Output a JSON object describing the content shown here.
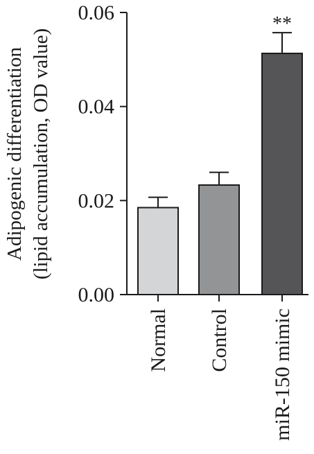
{
  "chart_data": {
    "type": "bar",
    "categories": [
      "Normal",
      "Control",
      "miR-150 mimic"
    ],
    "values": [
      0.0185,
      0.0233,
      0.0513
    ],
    "errors": [
      0.0022,
      0.0027,
      0.0044
    ],
    "significance": [
      "",
      "",
      "**"
    ],
    "bar_colors": [
      "#d4d5d7",
      "#939496",
      "#555558"
    ],
    "ylabel_line1": "Adipogenic differentiation",
    "ylabel_line2": "(lipid accumulation, OD value)",
    "ylim": [
      0,
      0.06
    ],
    "yticks": [
      "0.00",
      "0.02",
      "0.04",
      "0.06"
    ],
    "ytick_values": [
      0,
      0.02,
      0.04,
      0.06
    ],
    "grid": false
  }
}
